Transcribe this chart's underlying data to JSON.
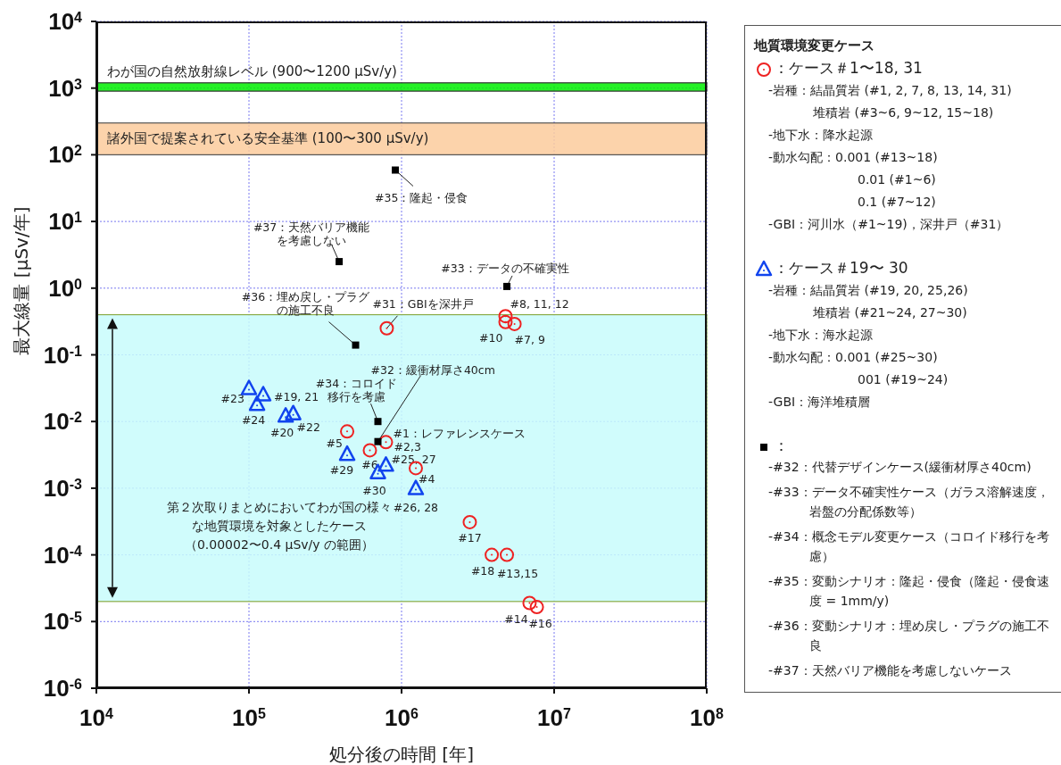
{
  "chart_data": {
    "type": "scatter",
    "xlabel": "処分後の時間 [年]",
    "ylabel": "最大線量 [μSv/年]",
    "legend_title": "地質環境変更ケース",
    "log": "xy",
    "grid": true,
    "legend": "right",
    "xlim": [
      10000,
      100000000
    ],
    "xticks": [
      {
        "value": 10000,
        "label": "10$^{4}$"
      },
      {
        "value": 100000,
        "label": "10$^{5}$"
      },
      {
        "value": 1000000,
        "label": "10$^{6}$"
      },
      {
        "value": 10000000,
        "label": "10$^{7}$"
      },
      {
        "value": 100000000,
        "label": "10$^{8}$"
      }
    ],
    "ylim": [
      1e-06,
      10000
    ],
    "yticks": [
      {
        "value": 1e-06,
        "label": "10$^{-6}$"
      },
      {
        "value": 1e-05,
        "label": "10$^{-5}$"
      },
      {
        "value": 0.0001,
        "label": "10$^{-4}$"
      },
      {
        "value": 0.001,
        "label": "10$^{-3}$"
      },
      {
        "value": 0.01,
        "label": "10$^{-2}$"
      },
      {
        "value": 0.1,
        "label": "10$^{-1}$"
      },
      {
        "value": 1,
        "label": "10$^{0}$"
      },
      {
        "value": 10,
        "label": "10$^{1}$"
      },
      {
        "value": 100,
        "label": "10$^{2}$"
      },
      {
        "value": 1000,
        "label": "10$^{3}$"
      },
      {
        "value": 10000,
        "label": "10$^{4}$"
      }
    ],
    "series": [
      {
        "name": "：ケース＃1〜18, 31",
        "color": "#ee2222",
        "marker": "circle",
        "x": [
          800000,
          4800000,
          4800000,
          5500000,
          440000,
          620000,
          790000,
          1240000,
          2800000,
          3900000,
          4900000,
          6900000,
          7700000
        ],
        "values": [
          0.25,
          0.38,
          0.31,
          0.29,
          0.0071,
          0.0037,
          0.0049,
          0.002,
          0.00031,
          0.0001,
          0.0001,
          1.9e-05,
          1.65e-05
        ]
      },
      {
        "name": "：ケース＃19〜 30",
        "color": "#1144ee",
        "marker": "triangle",
        "x": [
          100000,
          124000,
          113000,
          174000,
          195000,
          440000,
          790000,
          700000,
          1240000
        ],
        "values": [
          0.031,
          0.025,
          0.018,
          0.012,
          0.013,
          0.0032,
          0.0022,
          0.0017,
          0.00098
        ]
      },
      {
        "name": "：",
        "color": "#000000",
        "marker": "square",
        "x": [
          910000,
          390000,
          4900000,
          500000,
          700000,
          700000
        ],
        "values": [
          59,
          2.5,
          1.06,
          0.14,
          0.01,
          0.005
        ]
      }
    ],
    "bands": [
      {
        "axis": "y",
        "from": 900,
        "to": 1200,
        "color": "#00ee00",
        "label": "わが国の自然放射線レベル (900〜1200 μSv/y)"
      },
      {
        "axis": "y",
        "from": 100,
        "to": 300,
        "color": "#fccb9c",
        "label": "諸外国で提案されている安全基準 (100〜300 μSv/y)"
      },
      {
        "axis": "y",
        "from": 2e-05,
        "to": 0.4,
        "color": "#c8fcfc",
        "label": "第２次取りまとめにおいてわが国の様々な地質環境を対象としたケース（0.00002〜0.4 μSv/y の範囲）"
      }
    ],
    "annotations": [
      {
        "text": "#35：隆起・侵食",
        "x": 910000,
        "y": 59
      },
      {
        "text": "#37：天然バリア機能を考慮しない",
        "x": 390000,
        "y": 2.5
      },
      {
        "text": "#33：データの不確実性",
        "x": 4900000,
        "y": 1.06
      },
      {
        "text": "#36：埋め戻し・プラグの施工不良",
        "x": 500000,
        "y": 0.14
      },
      {
        "text": "#31：GBIを深井戸",
        "x": 800000,
        "y": 0.25
      },
      {
        "text": "#8, 11, 12",
        "x": 4800000,
        "y": 0.38
      },
      {
        "text": "#10",
        "x": 4800000,
        "y": 0.31
      },
      {
        "text": "#7, 9",
        "x": 5500000,
        "y": 0.29
      },
      {
        "text": "#32：緩衝材厚さ40cm",
        "x": 700000,
        "y": 0.005
      },
      {
        "text": "#34：コロイド移行を考慮",
        "x": 700000,
        "y": 0.01
      },
      {
        "text": "#1：レファレンスケース",
        "x": 790000,
        "y": 0.0049
      },
      {
        "text": "#2,3",
        "x": 790000,
        "y": 0.0049
      },
      {
        "text": "#5",
        "x": 440000,
        "y": 0.0071
      },
      {
        "text": "#6",
        "x": 620000,
        "y": 0.0037
      },
      {
        "text": "#4",
        "x": 1240000,
        "y": 0.002
      },
      {
        "text": "#17",
        "x": 2800000,
        "y": 0.00031
      },
      {
        "text": "#18",
        "x": 3900000,
        "y": 0.0001
      },
      {
        "text": "#13,15",
        "x": 4900000,
        "y": 0.0001
      },
      {
        "text": "#14",
        "x": 6900000,
        "y": 1.9e-05
      },
      {
        "text": "#16",
        "x": 7700000,
        "y": 1.65e-05
      },
      {
        "text": "#23",
        "x": 100000,
        "y": 0.031
      },
      {
        "text": "#19, 21",
        "x": 124000,
        "y": 0.025
      },
      {
        "text": "#24",
        "x": 113000,
        "y": 0.018
      },
      {
        "text": "#20",
        "x": 174000,
        "y": 0.012
      },
      {
        "text": "#22",
        "x": 195000,
        "y": 0.013
      },
      {
        "text": "#29",
        "x": 440000,
        "y": 0.0032
      },
      {
        "text": "#25, 27",
        "x": 790000,
        "y": 0.0022
      },
      {
        "text": "#30",
        "x": 700000,
        "y": 0.0017
      },
      {
        "text": "#26, 28",
        "x": 1240000,
        "y": 0.00098
      },
      "-岩種：結晶質岩 (#1, 2, 7, 8, 13, 14, 31)",
      "堆積岩 (#3~6, 9~12, 15~18)",
      "-地下水：降水起源",
      "-動水勾配：0.001 (#13~18)",
      "0.01 (#1~6)",
      "0.1 (#7~12)",
      "-GBI：河川水（#1~19)，深井戸（#31）",
      "-岩種：結晶質岩 (#19, 20, 25,26)",
      "堆積岩 (#21~24, 27~30)",
      "-地下水：海水起源",
      "-動水勾配：0.001 (#25~30)",
      "001 (#19~24)",
      "-GBI：海洋堆積層",
      "-#32：代替デザインケース(緩衝材厚さ40cm)",
      "-#33：データ不確実性ケース（ガラス溶解速度，岩盤の分配係数等）",
      "-#34：概念モデル変更ケース（コロイド移行を考慮）",
      "-#35：変動シナリオ：隆起・侵食（隆起・侵食速度 = 1mm/y)",
      "-#36：変動シナリオ：埋め戻し・プラグの施工不良",
      "-#37：天然バリア機能を考慮しないケース"
    ]
  }
}
